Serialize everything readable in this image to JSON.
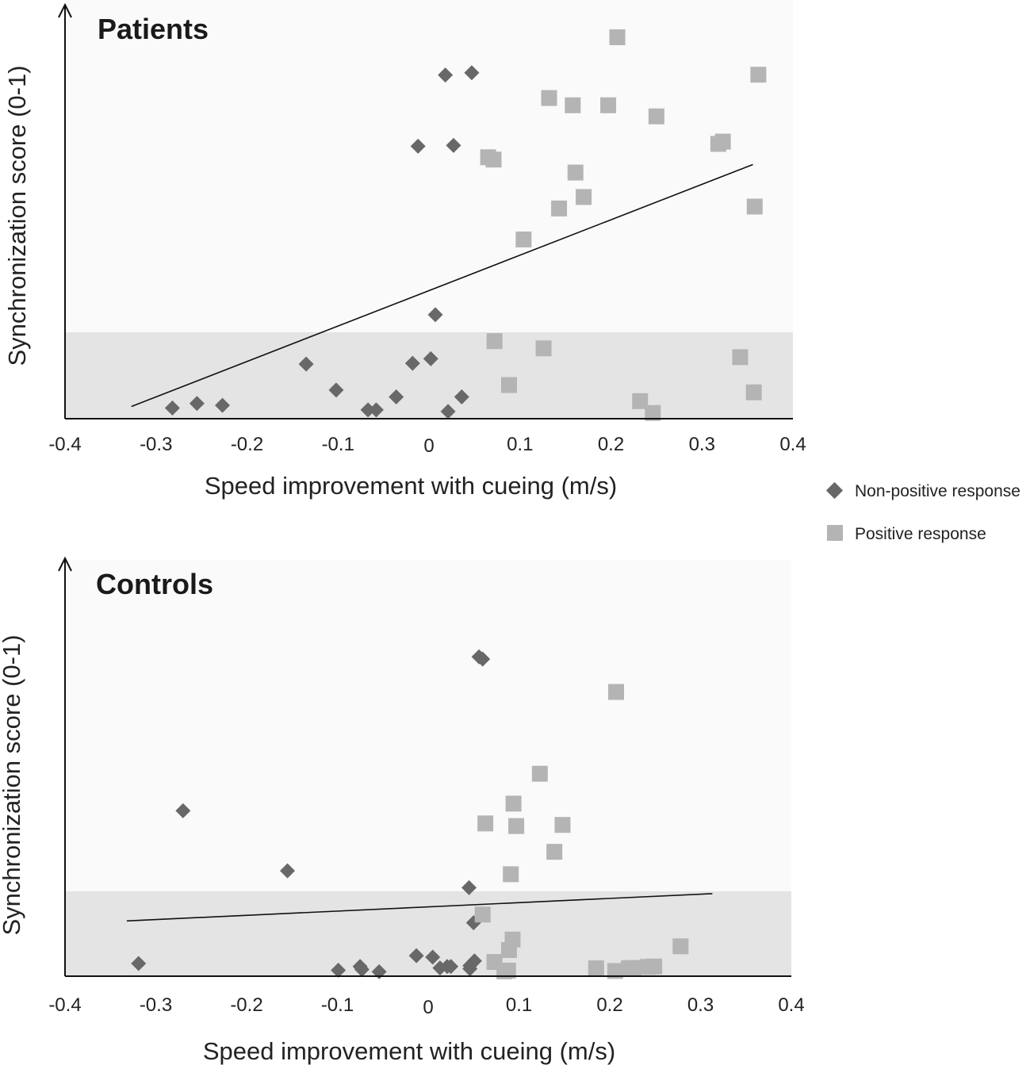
{
  "legend": {
    "non_positive": "Non-positive response",
    "positive": "Positive response"
  },
  "colors": {
    "non_positive": "#686868",
    "positive": "#b4b4b4",
    "band_upper": "#fafafa",
    "band_lower": "#e4e4e4"
  },
  "chart_data": [
    {
      "type": "scatter",
      "title": "Patients",
      "xlabel": "Speed improvement with cueing (m/s)",
      "ylabel": "Synchronization score (0-1)",
      "xlim": [
        -0.4,
        0.4
      ],
      "ylim": [
        0,
        1
      ],
      "x_ticks": [
        "-0.4",
        "-0.3",
        "-0.2",
        "-0.1",
        "0",
        "0.1",
        "0.2",
        "0.3",
        "0.4"
      ],
      "shaded_band_upper_y": 0.225,
      "series": [
        {
          "name": "Non-positive response",
          "points": [
            [
              -0.282,
              0.028
            ],
            [
              -0.255,
              0.04
            ],
            [
              -0.227,
              0.035
            ],
            [
              -0.135,
              0.143
            ],
            [
              -0.102,
              0.075
            ],
            [
              -0.067,
              0.023
            ],
            [
              -0.058,
              0.023
            ],
            [
              -0.036,
              0.057
            ],
            [
              -0.018,
              0.145
            ],
            [
              -0.012,
              0.713
            ],
            [
              0.002,
              0.157
            ],
            [
              0.007,
              0.272
            ],
            [
              0.018,
              0.899
            ],
            [
              0.021,
              0.019
            ],
            [
              0.027,
              0.715
            ],
            [
              0.036,
              0.057
            ],
            [
              0.047,
              0.905
            ]
          ]
        },
        {
          "name": "Positive response",
          "points": [
            [
              0.065,
              0.684
            ],
            [
              0.071,
              0.678
            ],
            [
              0.072,
              0.203
            ],
            [
              0.088,
              0.088
            ],
            [
              0.104,
              0.469
            ],
            [
              0.126,
              0.184
            ],
            [
              0.132,
              0.839
            ],
            [
              0.143,
              0.55
            ],
            [
              0.158,
              0.82
            ],
            [
              0.161,
              0.644
            ],
            [
              0.17,
              0.58
            ],
            [
              0.197,
              0.82
            ],
            [
              0.207,
              0.998
            ],
            [
              0.232,
              0.046
            ],
            [
              0.246,
              0.015
            ],
            [
              0.25,
              0.791
            ],
            [
              0.318,
              0.719
            ],
            [
              0.323,
              0.725
            ],
            [
              0.342,
              0.161
            ],
            [
              0.357,
              0.069
            ],
            [
              0.358,
              0.555
            ],
            [
              0.362,
              0.9
            ]
          ]
        }
      ],
      "trendline": [
        [
          -0.327,
          0.032
        ],
        [
          0.356,
          0.665
        ]
      ]
    },
    {
      "type": "scatter",
      "title": "Controls",
      "xlabel": "Speed improvement with cueing (m/s)",
      "ylabel": "Synchronization score (0-1)",
      "xlim": [
        -0.4,
        0.4
      ],
      "ylim": [
        0,
        1
      ],
      "x_ticks": [
        "-0.4",
        "-0.3",
        "-0.2",
        "-0.1",
        "0",
        "0.1",
        "0.2",
        "0.3",
        "0.4"
      ],
      "shaded_band_upper_y": 0.203,
      "series": [
        {
          "name": "Non-positive response",
          "points": [
            [
              -0.319,
              0.034
            ],
            [
              -0.27,
              0.443
            ],
            [
              -0.155,
              0.282
            ],
            [
              -0.099,
              0.016
            ],
            [
              -0.075,
              0.026
            ],
            [
              -0.073,
              0.018
            ],
            [
              -0.054,
              0.012
            ],
            [
              -0.013,
              0.055
            ],
            [
              0.005,
              0.051
            ],
            [
              0.013,
              0.022
            ],
            [
              0.021,
              0.026
            ],
            [
              0.025,
              0.026
            ],
            [
              0.045,
              0.237
            ],
            [
              0.046,
              0.028
            ],
            [
              0.046,
              0.02
            ],
            [
              0.05,
              0.143
            ],
            [
              0.051,
              0.041
            ],
            [
              0.056,
              0.855
            ],
            [
              0.06,
              0.849
            ]
          ]
        },
        {
          "name": "Positive response",
          "points": [
            [
              0.06,
              0.165
            ],
            [
              0.063,
              0.409
            ],
            [
              0.073,
              0.038
            ],
            [
              0.084,
              0.013
            ],
            [
              0.088,
              0.015
            ],
            [
              0.089,
              0.07
            ],
            [
              0.091,
              0.273
            ],
            [
              0.093,
              0.098
            ],
            [
              0.094,
              0.462
            ],
            [
              0.097,
              0.402
            ],
            [
              0.123,
              0.542
            ],
            [
              0.139,
              0.333
            ],
            [
              0.148,
              0.405
            ],
            [
              0.185,
              0.021
            ],
            [
              0.206,
              0.014
            ],
            [
              0.207,
              0.761
            ],
            [
              0.221,
              0.021
            ],
            [
              0.226,
              0.022
            ],
            [
              0.242,
              0.025
            ],
            [
              0.249,
              0.026
            ],
            [
              0.278,
              0.08
            ]
          ]
        }
      ],
      "trendline": [
        [
          -0.332,
          0.148
        ],
        [
          0.313,
          0.221
        ]
      ]
    }
  ]
}
